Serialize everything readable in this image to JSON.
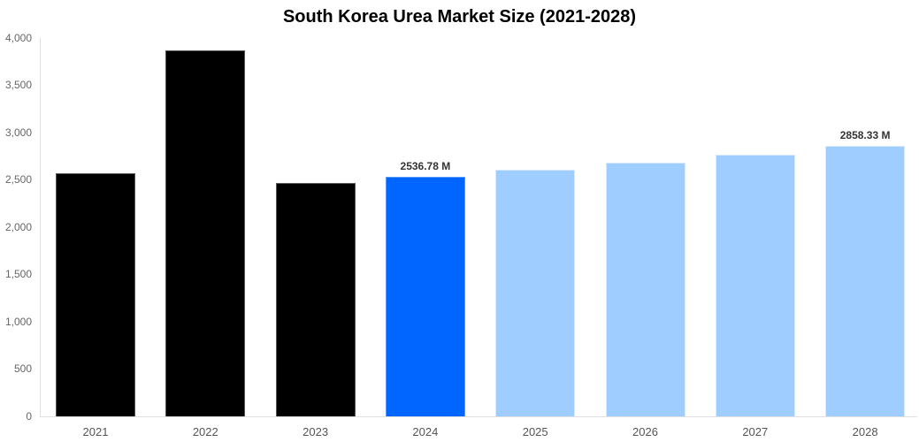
{
  "chart_data": {
    "type": "bar",
    "title": "South Korea Urea Market Size (2021-2028)",
    "xlabel": "",
    "ylabel": "",
    "ylim": [
      0,
      4000
    ],
    "yticks": [
      "0",
      "500",
      "1,000",
      "1,500",
      "2,000",
      "2,500",
      "3,000",
      "3,500",
      "4,000"
    ],
    "categories": [
      "2021",
      "2022",
      "2023",
      "2024",
      "2025",
      "2026",
      "2027",
      "2028"
    ],
    "values": [
      2570,
      3869,
      2467,
      2536.78,
      2607,
      2682,
      2766,
      2858.33
    ],
    "bar_types": [
      "historical",
      "historical",
      "historical",
      "current",
      "forecast",
      "forecast",
      "forecast",
      "forecast"
    ],
    "annotations": [
      {
        "category": "2024",
        "label": "2536.78 M"
      },
      {
        "category": "2028",
        "label": "2858.33 M"
      }
    ],
    "colors": {
      "historical": "#000000",
      "current": "#0066ff",
      "forecast": "#a0cdff"
    },
    "grid": false,
    "legend": "none"
  }
}
